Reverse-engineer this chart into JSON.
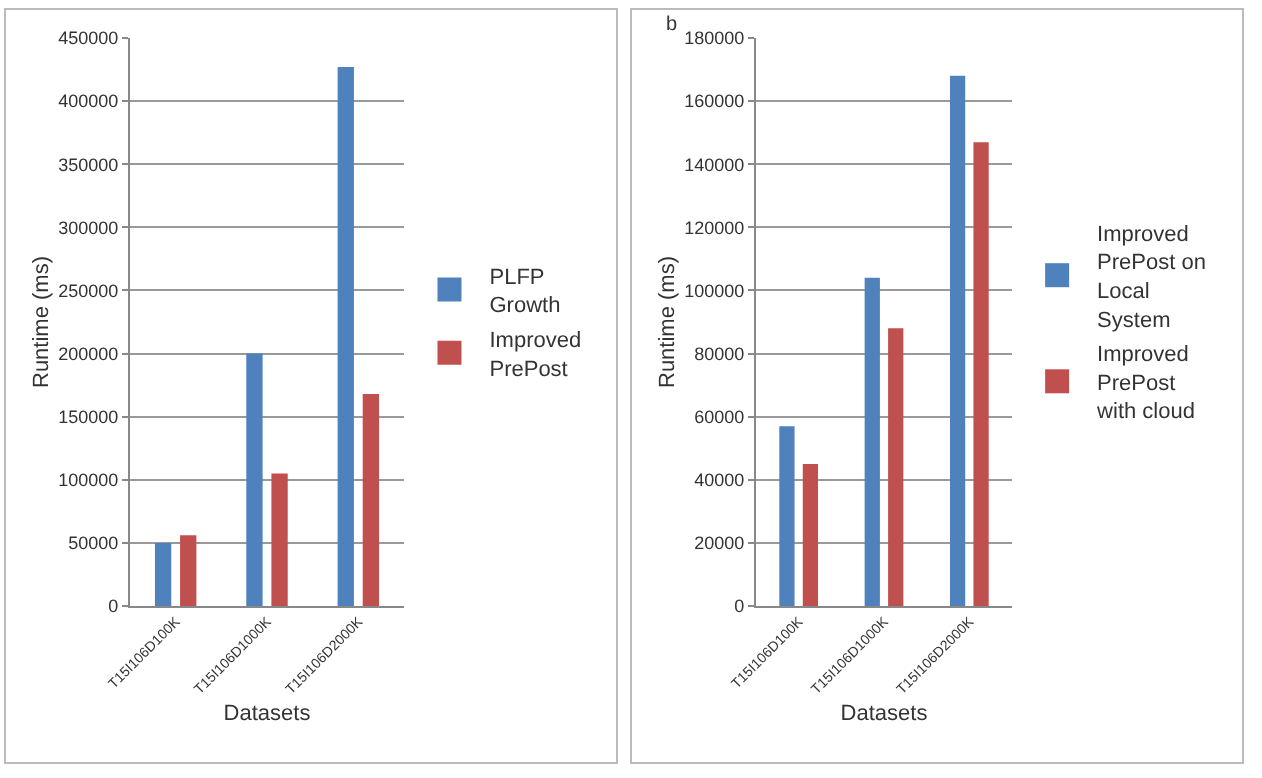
{
  "chart_data": [
    {
      "type": "bar",
      "categories": [
        "T15I106D100K",
        "T15I106D1000K",
        "T15I106D2000K"
      ],
      "xlabel": "Datasets",
      "ylabel": "Runtime (ms)",
      "ylim": [
        0,
        450000
      ],
      "yticks": [
        0,
        50000,
        100000,
        150000,
        200000,
        250000,
        300000,
        350000,
        400000,
        450000
      ],
      "grid": "y",
      "legend": "right",
      "series": [
        {
          "name": "PLFP Growth",
          "color": "#4f81bd",
          "values": [
            50000,
            200000,
            427000
          ]
        },
        {
          "name": "Improved PrePost",
          "color": "#c0504d",
          "values": [
            56000,
            105000,
            168000
          ]
        }
      ]
    },
    {
      "type": "bar",
      "annotations": [
        "b"
      ],
      "categories": [
        "T15I106D100K",
        "T15I106D1000K",
        "T15I106D2000K"
      ],
      "xlabel": "Datasets",
      "ylabel": "Runtime (ms)",
      "ylim": [
        0,
        180000
      ],
      "yticks": [
        0,
        20000,
        40000,
        60000,
        80000,
        100000,
        120000,
        140000,
        160000,
        180000
      ],
      "grid": "y",
      "legend": "right",
      "series": [
        {
          "name": "Improved PrePost on Local System",
          "color": "#4f81bd",
          "values": [
            57000,
            104000,
            168000
          ]
        },
        {
          "name": "Improved PrePost with cloud",
          "color": "#c0504d",
          "values": [
            45000,
            88000,
            147000
          ]
        }
      ]
    }
  ]
}
